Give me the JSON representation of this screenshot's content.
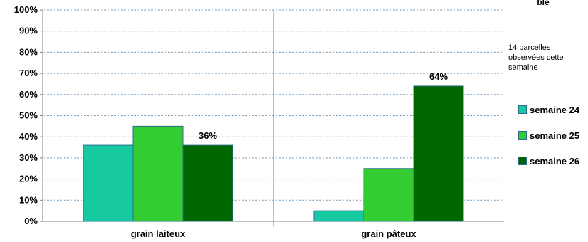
{
  "corner_title": "ble",
  "note": "14 parcelles observées cette semaine",
  "colors": {
    "semaine_24": "#17c9a0",
    "semaine_25": "#33cc33",
    "semaine_26": "#006600",
    "gridline": "#7a9fbf",
    "divider": "#808080"
  },
  "chart_data": {
    "type": "bar",
    "title": "",
    "xlabel": "",
    "ylabel": "",
    "categories": [
      "grain laiteux",
      "grain pâteux"
    ],
    "ylim": [
      0,
      100
    ],
    "yticks": [
      "0%",
      "10%",
      "20%",
      "30%",
      "40%",
      "50%",
      "60%",
      "70%",
      "80%",
      "90%",
      "100%"
    ],
    "grid": true,
    "legend_position": "right",
    "series": [
      {
        "name": "semaine 24",
        "values": [
          36,
          5
        ]
      },
      {
        "name": "semaine 25",
        "values": [
          45,
          25
        ]
      },
      {
        "name": "semaine 26",
        "values": [
          36,
          64
        ]
      }
    ],
    "data_labels": [
      {
        "series": 2,
        "category": 0,
        "text": "36%"
      },
      {
        "series": 2,
        "category": 1,
        "text": "64%"
      }
    ]
  }
}
